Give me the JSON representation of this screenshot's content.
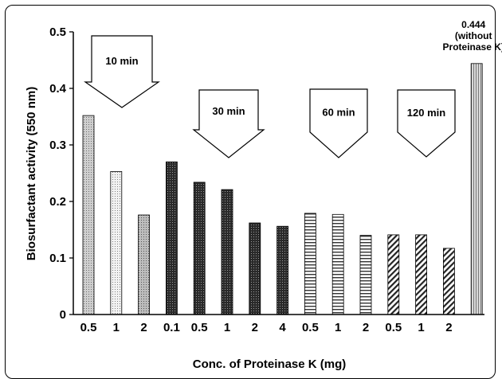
{
  "chart_data": {
    "type": "bar",
    "xlabel": "Conc. of Proteinase K (mg)",
    "ylabel": "Biosurfactant activity (550 nm)",
    "ylim": [
      0,
      0.5
    ],
    "yticks": [
      "0",
      "0.1",
      "0.2",
      "0.3",
      "0.4",
      "0.5"
    ],
    "categories": [
      "0.5",
      "1",
      "2",
      "0.1",
      "0.5",
      "1",
      "2",
      "4",
      "0.5",
      "1",
      "2",
      "0.5",
      "1",
      "2",
      ""
    ],
    "values": [
      0.352,
      0.253,
      0.176,
      0.27,
      0.234,
      0.221,
      0.162,
      0.156,
      0.179,
      0.177,
      0.14,
      0.141,
      0.141,
      0.117,
      0.444
    ],
    "patterns": [
      "light-dots",
      "fine-dots",
      "medium-dots",
      "dark-dots",
      "dark-dots",
      "dark-dots",
      "dark-dots",
      "dark-dots",
      "horizontal-lines",
      "horizontal-lines",
      "horizontal-lines",
      "diagonal-lines",
      "diagonal-lines",
      "diagonal-lines",
      "vertical-lines"
    ],
    "groups": [
      {
        "label": "10 min"
      },
      {
        "label": "30 min"
      },
      {
        "label": "60 min"
      },
      {
        "label": "120 min"
      }
    ],
    "annotation": {
      "lines": [
        "0.444",
        "(without",
        "Proteinase K)"
      ]
    },
    "grid": false,
    "legend": "none"
  }
}
